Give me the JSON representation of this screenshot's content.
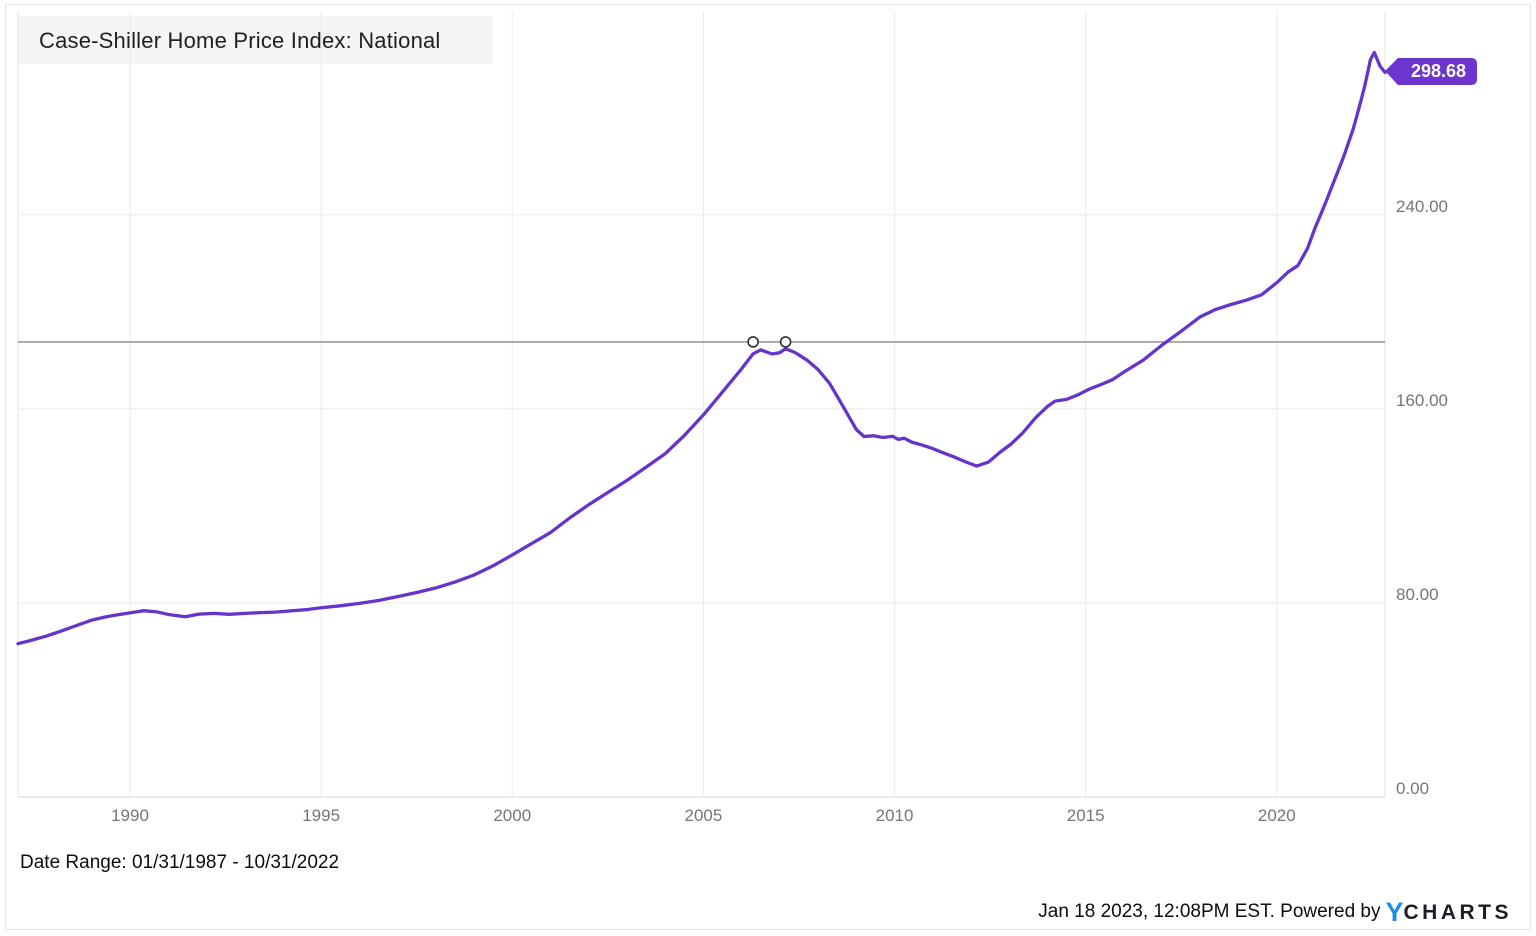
{
  "title": "Case-Shiller Home Price Index: National",
  "current_value_badge": "298.68",
  "date_range": "Date Range: 01/31/1987 - 10/31/2022",
  "footer": {
    "timestamp_text": "Jan 18 2023, 12:08PM EST. Powered by",
    "logo_y": "Y",
    "logo_charts": "CHARTS"
  },
  "colors": {
    "line": "#6434cc",
    "badge_bg": "#6c35cf",
    "grid": "#ebebeb",
    "axis_bottom": "#d4d4d4",
    "plot_border": "#e3e3e3",
    "tick_text": "#757575",
    "reference_line": "#878787",
    "marker_stroke": "#2f2f2f",
    "title_bg": "#f5f5f5",
    "logo_blue": "#1e8ce8"
  },
  "chart_data": {
    "type": "line",
    "title": "Case-Shiller Home Price Index: National",
    "legend": false,
    "grid": true,
    "x_tick_labels": [
      "1990",
      "1995",
      "2000",
      "2005",
      "2010",
      "2015",
      "2020"
    ],
    "x_tick_years": [
      1990,
      1995,
      2000,
      2005,
      2010,
      2015,
      2020
    ],
    "y_ticks": [
      0,
      80,
      160,
      240
    ],
    "y_tick_labels": [
      "0.00",
      "80.00",
      "160.00",
      "240.00"
    ],
    "xlim": [
      1987.07,
      2022.83
    ],
    "ylim": [
      0,
      324
    ],
    "reference_line_value": 187.6,
    "peak_markers": [
      {
        "x": 2006.3,
        "value": 187.6
      },
      {
        "x": 2007.15,
        "value": 187.6
      }
    ],
    "last_value": 298.68,
    "series": [
      {
        "name": "Case-Shiller Home Price Index: National",
        "x": [
          1987.07,
          1987.4,
          1987.8,
          1988.2,
          1988.6,
          1989.0,
          1989.35,
          1989.7,
          1990.0,
          1990.35,
          1990.7,
          1991.05,
          1991.45,
          1991.8,
          1992.2,
          1992.6,
          1993.0,
          1993.4,
          1993.8,
          1994.2,
          1994.6,
          1995.0,
          1995.5,
          1996.0,
          1996.5,
          1997.0,
          1997.5,
          1998.0,
          1998.5,
          1999.0,
          1999.5,
          2000.0,
          2000.5,
          2001.0,
          2001.5,
          2002.0,
          2002.5,
          2003.0,
          2003.5,
          2004.0,
          2004.5,
          2005.0,
          2005.5,
          2006.0,
          2006.3,
          2006.5,
          2006.8,
          2007.0,
          2007.15,
          2007.4,
          2007.7,
          2008.0,
          2008.3,
          2008.6,
          2009.0,
          2009.2,
          2009.45,
          2009.7,
          2009.95,
          2010.1,
          2010.25,
          2010.45,
          2010.7,
          2011.0,
          2011.3,
          2011.6,
          2011.9,
          2012.15,
          2012.45,
          2012.75,
          2013.05,
          2013.35,
          2013.7,
          2014.0,
          2014.2,
          2014.5,
          2014.8,
          2015.1,
          2015.4,
          2015.7,
          2016.0,
          2016.5,
          2017.0,
          2017.5,
          2018.0,
          2018.4,
          2018.8,
          2019.2,
          2019.6,
          2020.0,
          2020.3,
          2020.55,
          2020.8,
          2021.0,
          2021.25,
          2021.5,
          2021.75,
          2022.0,
          2022.15,
          2022.3,
          2022.45,
          2022.55,
          2022.7,
          2022.83
        ],
        "values": [
          63.2,
          64.5,
          66.3,
          68.4,
          70.7,
          72.9,
          74.2,
          75.2,
          75.9,
          76.8,
          76.3,
          75.1,
          74.3,
          75.4,
          75.7,
          75.3,
          75.7,
          76.0,
          76.2,
          76.7,
          77.2,
          78.0,
          78.8,
          79.8,
          81.0,
          82.6,
          84.3,
          86.2,
          88.6,
          91.5,
          95.3,
          99.8,
          104.4,
          109.0,
          115.0,
          120.5,
          125.5,
          130.5,
          136.0,
          141.5,
          149.0,
          157.5,
          167.0,
          176.5,
          182.7,
          184.3,
          182.6,
          183.2,
          184.8,
          183.2,
          180.2,
          176.2,
          170.5,
          162.5,
          151.5,
          148.6,
          148.9,
          148.2,
          148.7,
          147.4,
          147.9,
          146.3,
          145.2,
          143.6,
          141.7,
          139.9,
          137.9,
          136.4,
          138.0,
          142.0,
          145.5,
          150.0,
          156.5,
          161.0,
          163.2,
          163.9,
          165.8,
          168.2,
          170.0,
          172.0,
          175.2,
          180.0,
          186.3,
          192.0,
          198.0,
          201.0,
          203.0,
          204.8,
          207.0,
          212.0,
          216.5,
          219.0,
          226.0,
          234.5,
          244.0,
          254.0,
          264.0,
          275.5,
          284.0,
          293.0,
          304.0,
          306.9,
          301.3,
          298.68
        ]
      }
    ]
  }
}
